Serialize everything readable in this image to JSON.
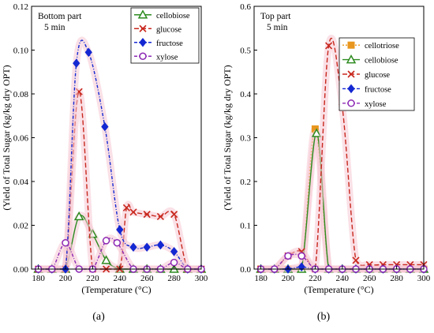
{
  "chart_data": [
    {
      "type": "line",
      "title_lines": [
        "Bottom part",
        "5 min"
      ],
      "xlabel": "(Temperature (°C)",
      "ylabel": "(Yield of  Total Sugar (kg/kg dry OPT)",
      "caption": "(a)",
      "xlim": [
        175,
        300
      ],
      "ylim": [
        0,
        0.12
      ],
      "xticks": [
        "180",
        "200",
        "220",
        "240",
        "260",
        "280",
        "300"
      ],
      "yticks": [
        "0.00",
        "0.02",
        "0.04",
        "0.06",
        "0.08",
        "0.10",
        "0.12"
      ],
      "grid": false,
      "legend_position": "top-right",
      "series": [
        {
          "name": "cellobiose",
          "color": "#2e8b20",
          "marker": "triangle",
          "x": [
            180,
            190,
            200,
            210,
            220,
            230,
            240,
            250,
            260,
            270,
            280,
            290,
            300
          ],
          "y": [
            0,
            0,
            0,
            0.024,
            0.016,
            0.004,
            0,
            0,
            0,
            0,
            0,
            0,
            0
          ]
        },
        {
          "name": "glucose",
          "color": "#c8281e",
          "marker": "x",
          "x": [
            180,
            190,
            200,
            210,
            220,
            230,
            240,
            245,
            250,
            260,
            270,
            280,
            290,
            300
          ],
          "y": [
            0,
            0,
            0,
            0.081,
            0,
            0,
            0,
            0.028,
            0.026,
            0.025,
            0.024,
            0.025,
            0,
            0
          ]
        },
        {
          "name": "fructose",
          "color": "#1428d2",
          "marker": "diamond",
          "x": [
            180,
            190,
            200,
            208,
            217,
            229,
            240,
            250,
            260,
            270,
            280,
            290,
            300
          ],
          "y": [
            0,
            0,
            0,
            0.094,
            0.099,
            0.065,
            0.018,
            0.01,
            0.01,
            0.011,
            0.008,
            0,
            0
          ]
        },
        {
          "name": "xylose",
          "color": "#8c28b4",
          "marker": "circle",
          "x": [
            180,
            190,
            200,
            210,
            220,
            230,
            238,
            250,
            260,
            270,
            280,
            290,
            300
          ],
          "y": [
            0,
            0,
            0.012,
            0,
            0,
            0.013,
            0.012,
            0,
            0,
            0,
            0.003,
            0,
            0
          ]
        }
      ]
    },
    {
      "type": "line",
      "title_lines": [
        "Top part",
        "5 min"
      ],
      "xlabel": "(Temperature (°C)",
      "ylabel": "(Yield of  Total Sugar (kg/kg dry OPT)",
      "caption": "(b)",
      "xlim": [
        175,
        300
      ],
      "ylim": [
        0,
        0.6
      ],
      "xticks": [
        "180",
        "200",
        "220",
        "240",
        "260",
        "280",
        "300"
      ],
      "yticks": [
        "0.0",
        "0.1",
        "0.2",
        "0.3",
        "0.4",
        "0.5",
        "0.6"
      ],
      "grid": false,
      "legend_position": "top-right",
      "series": [
        {
          "name": "cellotriose",
          "color": "#e8961e",
          "marker": "square",
          "x": [
            180,
            190,
            200,
            210,
            220,
            230,
            240,
            250,
            260,
            270,
            280,
            290,
            300
          ],
          "y": [
            0,
            0,
            0,
            0,
            0.32,
            0,
            0,
            0,
            0,
            0,
            0,
            0,
            0
          ]
        },
        {
          "name": "cellobiose",
          "color": "#2e8b20",
          "marker": "triangle",
          "x": [
            180,
            190,
            200,
            210,
            221,
            230,
            240,
            250,
            260,
            270,
            280,
            290,
            300
          ],
          "y": [
            0,
            0,
            0,
            0,
            0.31,
            0,
            0,
            0,
            0,
            0,
            0,
            0,
            0
          ]
        },
        {
          "name": "glucose",
          "color": "#c8281e",
          "marker": "x",
          "x": [
            180,
            190,
            200,
            210,
            220,
            230,
            240,
            250,
            260,
            270,
            280,
            290,
            300
          ],
          "y": [
            0,
            0,
            0.03,
            0.04,
            0,
            0.51,
            0.37,
            0.02,
            0.01,
            0.01,
            0.01,
            0.01,
            0.01
          ]
        },
        {
          "name": "fructose",
          "color": "#1428d2",
          "marker": "diamond",
          "x": [
            180,
            190,
            200,
            210,
            220,
            230,
            240,
            250,
            260,
            270,
            280,
            290,
            300
          ],
          "y": [
            0,
            0,
            0,
            0.005,
            0,
            0,
            0,
            0,
            0,
            0,
            0,
            0,
            0
          ]
        },
        {
          "name": "xylose",
          "color": "#8c28b4",
          "marker": "circle",
          "x": [
            180,
            190,
            200,
            210,
            220,
            230,
            240,
            250,
            260,
            270,
            280,
            290,
            300
          ],
          "y": [
            0,
            0,
            0.03,
            0.03,
            0,
            0,
            0,
            0,
            0,
            0,
            0,
            0,
            0
          ]
        }
      ]
    }
  ]
}
